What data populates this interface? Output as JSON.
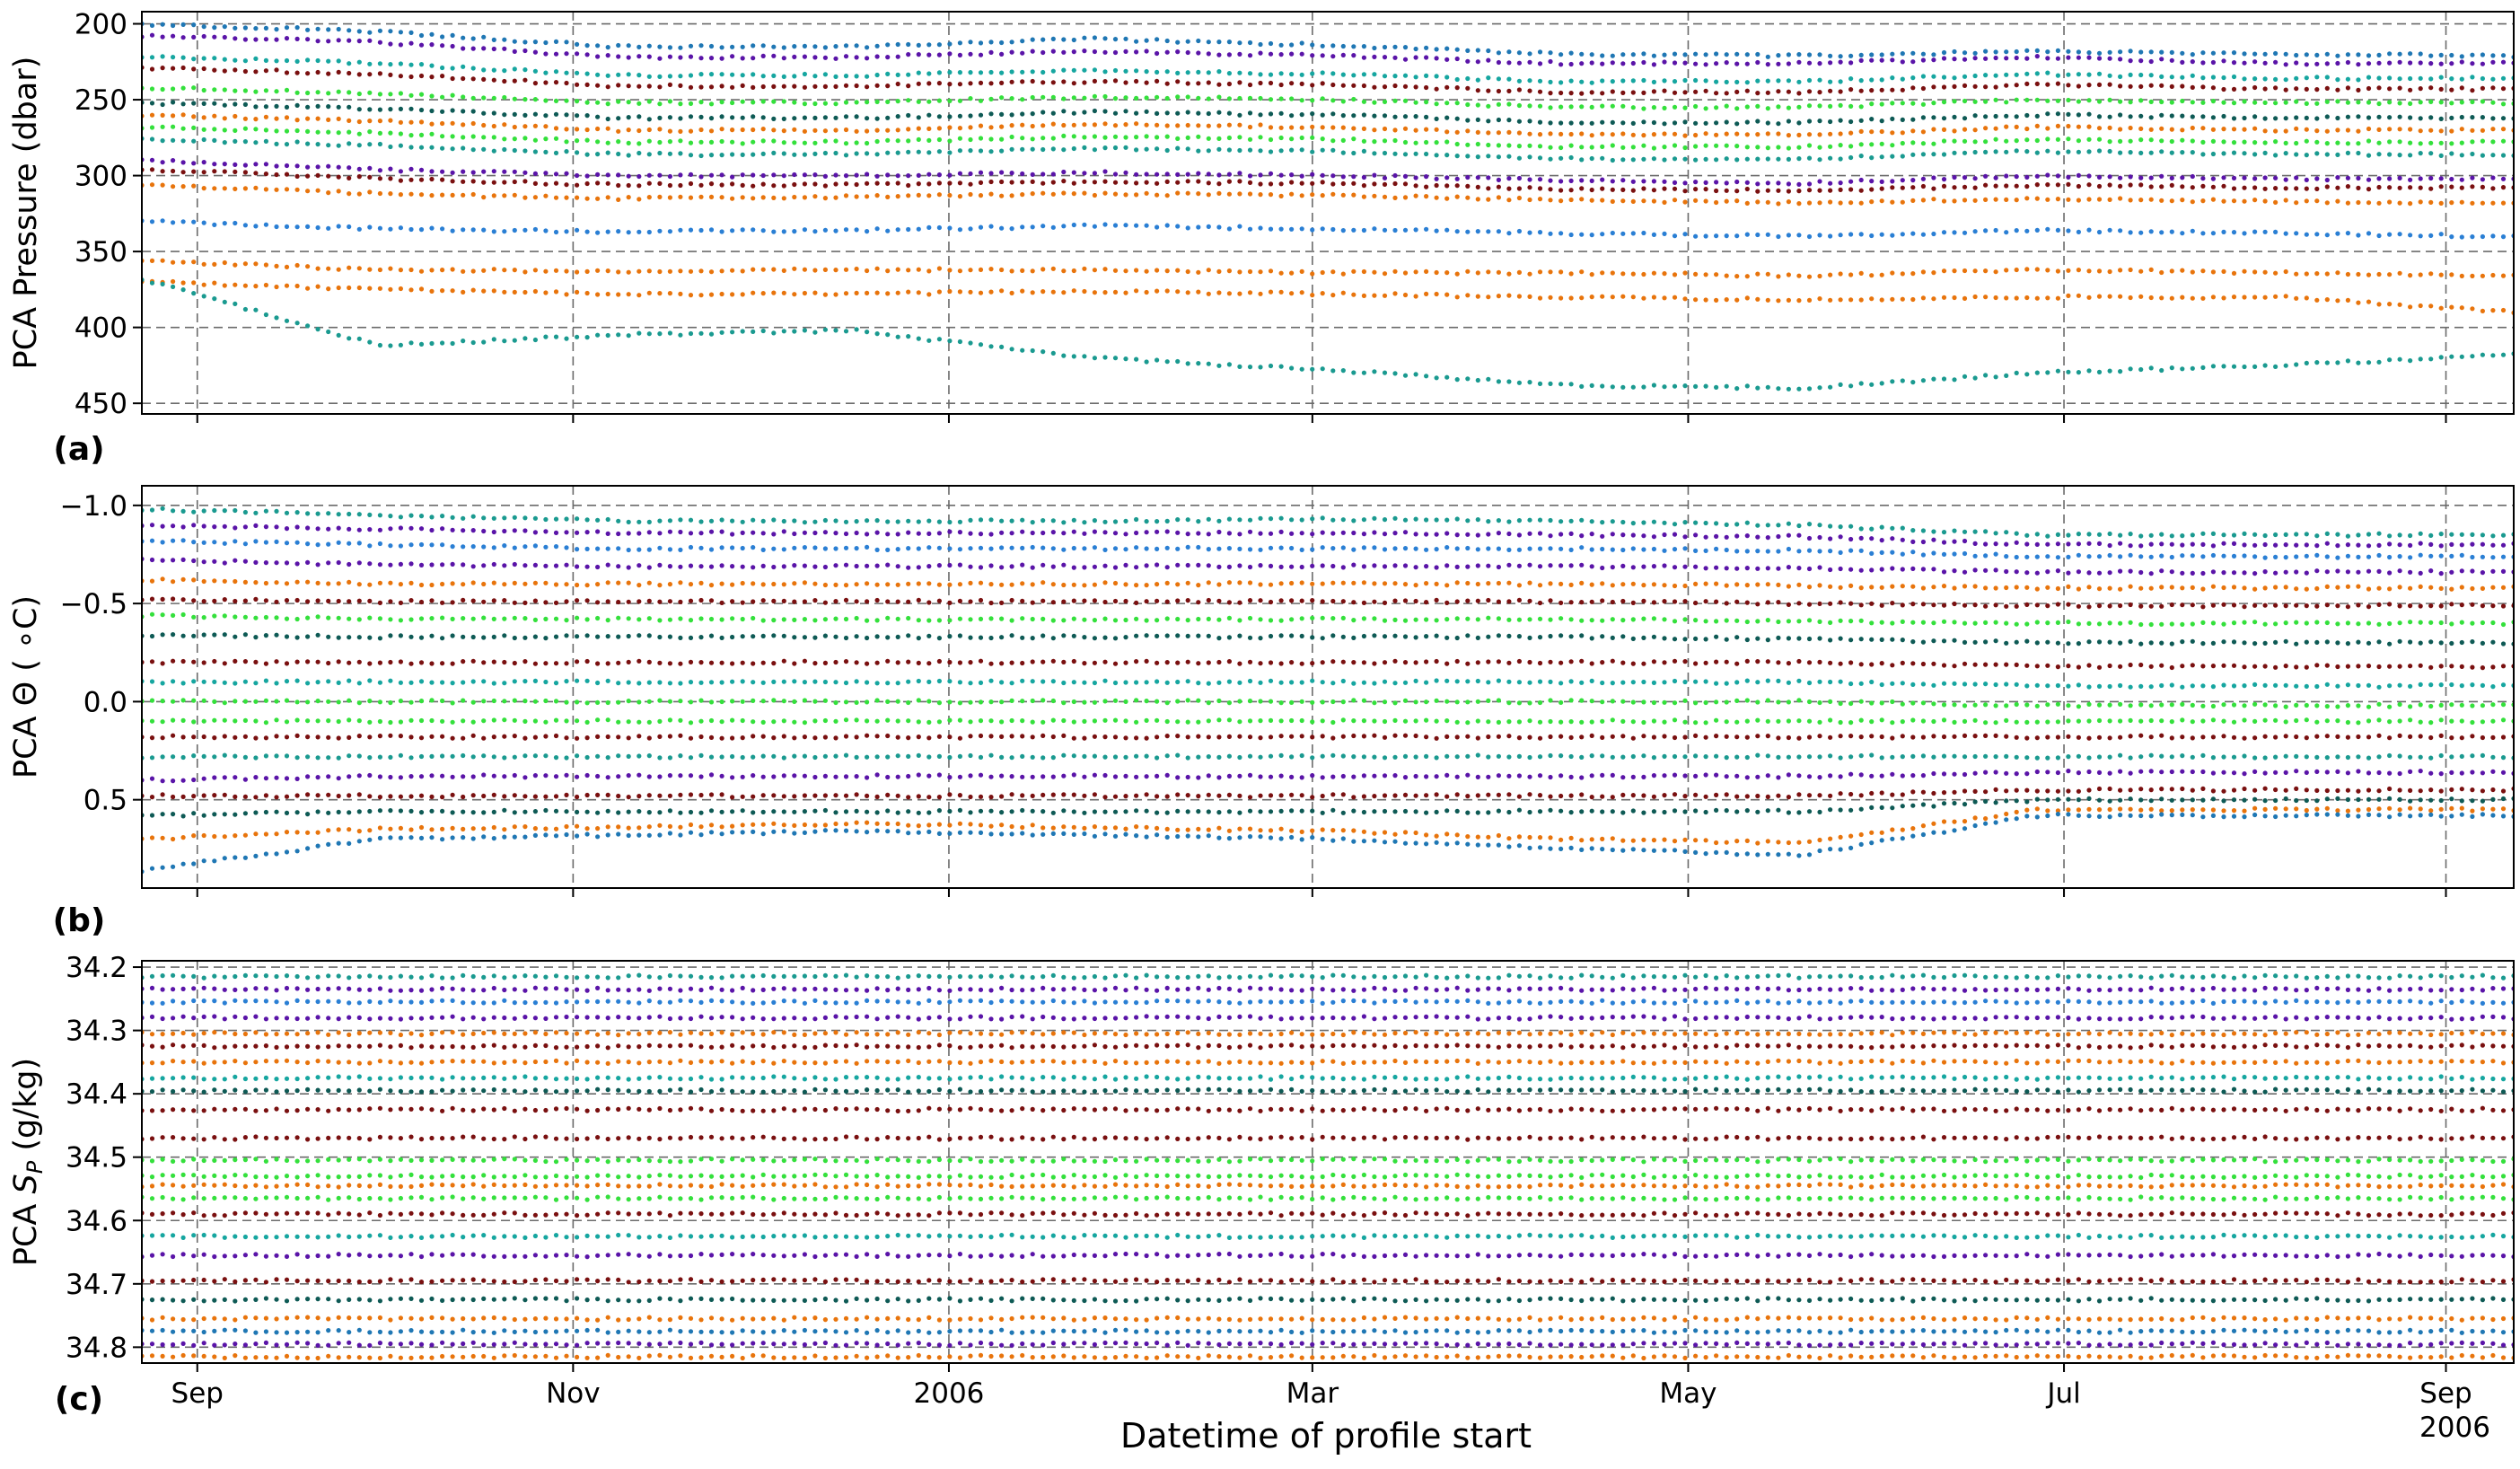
{
  "figure": {
    "xlabel": "Datetime of profile start",
    "x_ticks": [
      {
        "date": "2005-09-01",
        "label": "Sep",
        "sublabel": ""
      },
      {
        "date": "2005-11-01",
        "label": "Nov",
        "sublabel": ""
      },
      {
        "date": "2006-01-01",
        "label": "2006",
        "sublabel": ""
      },
      {
        "date": "2006-03-01",
        "label": "Mar",
        "sublabel": ""
      },
      {
        "date": "2006-05-01",
        "label": "May",
        "sublabel": ""
      },
      {
        "date": "2006-07-01",
        "label": "Jul",
        "sublabel": ""
      },
      {
        "date": "2006-09-01",
        "label": "Sep",
        "sublabel": "2006"
      }
    ],
    "colors": [
      "#1f77b4",
      "#e8740c",
      "#16a6a0",
      "#1a9a90",
      "#7a1010",
      "#34e03c",
      "#5a14a8",
      "#0e5a55",
      "#2a7fd4"
    ]
  },
  "chart_data": [
    {
      "type": "scatter",
      "panel_label": "(a)",
      "title": "",
      "xlabel": "",
      "ylabel": "PCA Pressure (dbar)",
      "xlim": [
        "2005-08-23",
        "2006-09-12"
      ],
      "ylim": [
        457,
        192
      ],
      "y_inverted": true,
      "grid": true,
      "y_ticks": [
        200,
        250,
        300,
        350,
        400,
        450
      ],
      "y_tick_labels": [
        "200",
        "250",
        "300",
        "350",
        "400",
        "450"
      ],
      "series": [
        {
          "color": "#1f77b4",
          "values": [
            200,
            205,
            215,
            215,
            210,
            214,
            220,
            221,
            218,
            220,
            221
          ]
        },
        {
          "color": "#5a14a8",
          "values": [
            208,
            212,
            222,
            222,
            218,
            221,
            226,
            226,
            222,
            226,
            226
          ]
        },
        {
          "color": "#16a6a0",
          "values": [
            222,
            226,
            234,
            234,
            231,
            233,
            238,
            238,
            233,
            236,
            236
          ]
        },
        {
          "color": "#7a1010",
          "values": [
            229,
            233,
            241,
            241,
            238,
            240,
            245,
            245,
            240,
            243,
            243
          ]
        },
        {
          "color": "#34e03c",
          "values": [
            242,
            246,
            252,
            252,
            248,
            250,
            255,
            255,
            250,
            252,
            252
          ]
        },
        {
          "color": "#0e5a55",
          "values": [
            252,
            256,
            262,
            262,
            258,
            260,
            265,
            265,
            260,
            262,
            262
          ]
        },
        {
          "color": "#e8740c",
          "values": [
            260,
            264,
            270,
            270,
            266,
            268,
            273,
            273,
            268,
            270,
            270
          ]
        },
        {
          "color": "#34e03c",
          "values": [
            268,
            272,
            278,
            278,
            274,
            276,
            281,
            281,
            276,
            278,
            278
          ]
        },
        {
          "color": "#1a9a90",
          "values": [
            276,
            280,
            286,
            286,
            282,
            284,
            289,
            289,
            284,
            286,
            286
          ]
        },
        {
          "color": "#7a1010",
          "values": [
            296,
            302,
            306,
            306,
            304,
            305,
            309,
            310,
            306,
            308,
            308
          ]
        },
        {
          "color": "#e8740c",
          "values": [
            306,
            312,
            315,
            314,
            312,
            313,
            316,
            318,
            315,
            317,
            318
          ]
        },
        {
          "color": "#5a14a8",
          "values": [
            290,
            296,
            300,
            300,
            298,
            300,
            303,
            305,
            300,
            302,
            302
          ]
        },
        {
          "color": "#2a7fd4",
          "values": [
            330,
            335,
            337,
            336,
            333,
            335,
            338,
            340,
            336,
            338,
            340
          ]
        },
        {
          "color": "#e8740c",
          "values": [
            356,
            362,
            363,
            362,
            362,
            364,
            364,
            366,
            362,
            364,
            366
          ]
        },
        {
          "color": "#e8740c",
          "values": [
            370,
            375,
            378,
            378,
            376,
            378,
            380,
            382,
            380,
            380,
            390
          ]
        },
        {
          "color": "#1a9a90",
          "values": [
            368,
            412,
            405,
            402,
            420,
            428,
            438,
            440,
            430,
            425,
            418
          ]
        }
      ]
    },
    {
      "type": "scatter",
      "panel_label": "(b)",
      "title": "",
      "xlabel": "",
      "ylabel": "PCA Θ ( ∘C)",
      "xlim": [
        "2005-08-23",
        "2006-09-12"
      ],
      "ylim": [
        0.95,
        -1.1
      ],
      "y_inverted": true,
      "grid": true,
      "y_ticks": [
        -1.0,
        -0.5,
        0.0,
        0.5
      ],
      "y_tick_labels": [
        "−1.0",
        "−0.5",
        "0.0",
        "0.5"
      ],
      "series": [
        {
          "color": "#1a9a90",
          "values": [
            -0.98,
            -0.95,
            -0.92,
            -0.92,
            -0.92,
            -0.93,
            -0.92,
            -0.9,
            -0.85,
            -0.85,
            -0.85
          ]
        },
        {
          "color": "#5a14a8",
          "values": [
            -0.9,
            -0.88,
            -0.86,
            -0.86,
            -0.86,
            -0.86,
            -0.85,
            -0.84,
            -0.8,
            -0.8,
            -0.8
          ]
        },
        {
          "color": "#2a7fd4",
          "values": [
            -0.82,
            -0.8,
            -0.78,
            -0.78,
            -0.78,
            -0.78,
            -0.78,
            -0.77,
            -0.74,
            -0.74,
            -0.74
          ]
        },
        {
          "color": "#5a14a8",
          "values": [
            -0.72,
            -0.7,
            -0.69,
            -0.69,
            -0.69,
            -0.69,
            -0.69,
            -0.68,
            -0.66,
            -0.66,
            -0.66
          ]
        },
        {
          "color": "#e8740c",
          "values": [
            -0.62,
            -0.6,
            -0.6,
            -0.6,
            -0.6,
            -0.6,
            -0.6,
            -0.59,
            -0.58,
            -0.58,
            -0.58
          ]
        },
        {
          "color": "#7a1010",
          "values": [
            -0.52,
            -0.51,
            -0.51,
            -0.51,
            -0.51,
            -0.51,
            -0.51,
            -0.5,
            -0.49,
            -0.49,
            -0.49
          ]
        },
        {
          "color": "#34e03c",
          "values": [
            -0.44,
            -0.42,
            -0.42,
            -0.42,
            -0.42,
            -0.42,
            -0.42,
            -0.41,
            -0.4,
            -0.4,
            -0.4
          ]
        },
        {
          "color": "#0e5a55",
          "values": [
            -0.34,
            -0.33,
            -0.33,
            -0.33,
            -0.33,
            -0.33,
            -0.33,
            -0.32,
            -0.3,
            -0.3,
            -0.3
          ]
        },
        {
          "color": "#7a1010",
          "values": [
            -0.2,
            -0.2,
            -0.2,
            -0.2,
            -0.2,
            -0.2,
            -0.2,
            -0.2,
            -0.18,
            -0.18,
            -0.18
          ]
        },
        {
          "color": "#16a6a0",
          "values": [
            -0.1,
            -0.1,
            -0.1,
            -0.1,
            -0.1,
            -0.1,
            -0.1,
            -0.1,
            -0.08,
            -0.08,
            -0.08
          ]
        },
        {
          "color": "#34e03c",
          "values": [
            0.0,
            0.0,
            0.0,
            0.0,
            0.0,
            0.0,
            0.0,
            0.0,
            0.02,
            0.02,
            0.02
          ]
        },
        {
          "color": "#34e03c",
          "values": [
            0.1,
            0.1,
            0.1,
            0.1,
            0.1,
            0.1,
            0.1,
            0.1,
            0.1,
            0.1,
            0.1
          ]
        },
        {
          "color": "#7a1010",
          "values": [
            0.18,
            0.18,
            0.18,
            0.18,
            0.18,
            0.18,
            0.18,
            0.18,
            0.18,
            0.18,
            0.18
          ]
        },
        {
          "color": "#1a9a90",
          "values": [
            0.28,
            0.28,
            0.28,
            0.28,
            0.28,
            0.28,
            0.28,
            0.28,
            0.28,
            0.28,
            0.28
          ]
        },
        {
          "color": "#5a14a8",
          "values": [
            0.4,
            0.38,
            0.38,
            0.38,
            0.38,
            0.38,
            0.38,
            0.38,
            0.36,
            0.36,
            0.36
          ]
        },
        {
          "color": "#7a1010",
          "values": [
            0.48,
            0.48,
            0.48,
            0.48,
            0.48,
            0.48,
            0.48,
            0.48,
            0.45,
            0.45,
            0.45
          ]
        },
        {
          "color": "#0e5a55",
          "values": [
            0.58,
            0.56,
            0.56,
            0.56,
            0.56,
            0.56,
            0.56,
            0.56,
            0.5,
            0.5,
            0.5
          ]
        },
        {
          "color": "#e8740c",
          "values": [
            0.7,
            0.65,
            0.64,
            0.62,
            0.64,
            0.66,
            0.7,
            0.72,
            0.55,
            0.55,
            0.55
          ]
        },
        {
          "color": "#1f77b4",
          "values": [
            0.86,
            0.7,
            0.68,
            0.66,
            0.68,
            0.7,
            0.75,
            0.78,
            0.58,
            0.58,
            0.58
          ]
        }
      ]
    },
    {
      "type": "scatter",
      "panel_label": "(c)",
      "title": "",
      "xlabel": "",
      "ylabel": "PCA S_P (g/kg)",
      "ylabel_parts": {
        "prefix": "PCA ",
        "symbol": "S",
        "subscript": "P",
        "suffix": " (g/kg)"
      },
      "xlim": [
        "2005-08-23",
        "2006-09-12"
      ],
      "ylim": [
        34.825,
        34.19
      ],
      "y_inverted": true,
      "grid": true,
      "y_ticks": [
        34.2,
        34.3,
        34.4,
        34.5,
        34.6,
        34.7,
        34.8
      ],
      "y_tick_labels": [
        "34.2",
        "34.3",
        "34.4",
        "34.5",
        "34.6",
        "34.7",
        "34.8"
      ],
      "series": [
        {
          "color": "#1a9a90",
          "values": [
            34.215,
            34.215,
            34.215,
            34.215,
            34.215,
            34.215,
            34.215,
            34.215,
            34.215,
            34.215,
            34.215
          ]
        },
        {
          "color": "#5a14a8",
          "values": [
            34.235,
            34.235,
            34.235,
            34.235,
            34.235,
            34.235,
            34.235,
            34.235,
            34.235,
            34.235,
            34.235
          ]
        },
        {
          "color": "#2a7fd4",
          "values": [
            34.255,
            34.255,
            34.255,
            34.255,
            34.255,
            34.255,
            34.255,
            34.255,
            34.255,
            34.255,
            34.255
          ]
        },
        {
          "color": "#5a14a8",
          "values": [
            34.28,
            34.28,
            34.28,
            34.28,
            34.28,
            34.28,
            34.28,
            34.28,
            34.28,
            34.28,
            34.28
          ]
        },
        {
          "color": "#e8740c",
          "values": [
            34.305,
            34.305,
            34.305,
            34.305,
            34.305,
            34.305,
            34.305,
            34.305,
            34.305,
            34.305,
            34.305
          ]
        },
        {
          "color": "#7a1010",
          "values": [
            34.325,
            34.325,
            34.325,
            34.325,
            34.325,
            34.325,
            34.325,
            34.325,
            34.325,
            34.325,
            34.325
          ]
        },
        {
          "color": "#e8740c",
          "values": [
            34.35,
            34.35,
            34.35,
            34.35,
            34.35,
            34.35,
            34.35,
            34.35,
            34.35,
            34.35,
            34.35
          ]
        },
        {
          "color": "#16a6a0",
          "values": [
            34.375,
            34.375,
            34.375,
            34.375,
            34.375,
            34.375,
            34.375,
            34.375,
            34.375,
            34.375,
            34.375
          ]
        },
        {
          "color": "#0e5a55",
          "values": [
            34.395,
            34.395,
            34.395,
            34.395,
            34.395,
            34.395,
            34.395,
            34.395,
            34.395,
            34.395,
            34.395
          ]
        },
        {
          "color": "#7a1010",
          "values": [
            34.425,
            34.425,
            34.425,
            34.425,
            34.425,
            34.425,
            34.425,
            34.425,
            34.425,
            34.425,
            34.425
          ]
        },
        {
          "color": "#7a1010",
          "values": [
            34.47,
            34.47,
            34.47,
            34.47,
            34.47,
            34.47,
            34.47,
            34.47,
            34.47,
            34.47,
            34.47
          ]
        },
        {
          "color": "#34e03c",
          "values": [
            34.505,
            34.505,
            34.505,
            34.505,
            34.505,
            34.505,
            34.505,
            34.505,
            34.505,
            34.505,
            34.505
          ]
        },
        {
          "color": "#34e03c",
          "values": [
            34.53,
            34.53,
            34.53,
            34.53,
            34.53,
            34.53,
            34.53,
            34.53,
            34.53,
            34.53,
            34.53
          ]
        },
        {
          "color": "#e8740c",
          "values": [
            34.545,
            34.545,
            34.545,
            34.545,
            34.545,
            34.545,
            34.545,
            34.545,
            34.545,
            34.545,
            34.545
          ]
        },
        {
          "color": "#34e03c",
          "values": [
            34.565,
            34.565,
            34.565,
            34.565,
            34.565,
            34.565,
            34.565,
            34.565,
            34.565,
            34.565,
            34.565
          ]
        },
        {
          "color": "#7a1010",
          "values": [
            34.59,
            34.59,
            34.59,
            34.59,
            34.59,
            34.59,
            34.59,
            34.59,
            34.59,
            34.59,
            34.59
          ]
        },
        {
          "color": "#16a6a0",
          "values": [
            34.625,
            34.625,
            34.625,
            34.625,
            34.625,
            34.625,
            34.625,
            34.625,
            34.625,
            34.625,
            34.625
          ]
        },
        {
          "color": "#5a14a8",
          "values": [
            34.655,
            34.655,
            34.655,
            34.655,
            34.655,
            34.655,
            34.655,
            34.655,
            34.655,
            34.655,
            34.655
          ]
        },
        {
          "color": "#7a1010",
          "values": [
            34.695,
            34.695,
            34.695,
            34.695,
            34.695,
            34.695,
            34.695,
            34.695,
            34.695,
            34.695,
            34.695
          ]
        },
        {
          "color": "#0e5a55",
          "values": [
            34.725,
            34.725,
            34.725,
            34.725,
            34.725,
            34.725,
            34.725,
            34.725,
            34.725,
            34.725,
            34.725
          ]
        },
        {
          "color": "#e8740c",
          "values": [
            34.755,
            34.755,
            34.755,
            34.755,
            34.755,
            34.755,
            34.755,
            34.755,
            34.755,
            34.755,
            34.755
          ]
        },
        {
          "color": "#1f77b4",
          "values": [
            34.775,
            34.775,
            34.775,
            34.775,
            34.775,
            34.775,
            34.775,
            34.775,
            34.775,
            34.775,
            34.775
          ]
        },
        {
          "color": "#5a14a8",
          "values": [
            34.795,
            34.795,
            34.795,
            34.795,
            34.795,
            34.795,
            34.795,
            34.795,
            34.795,
            34.795,
            34.795
          ]
        },
        {
          "color": "#e8740c",
          "values": [
            34.815,
            34.815,
            34.815,
            34.815,
            34.815,
            34.815,
            34.815,
            34.815,
            34.815,
            34.815,
            34.815
          ]
        }
      ]
    }
  ]
}
